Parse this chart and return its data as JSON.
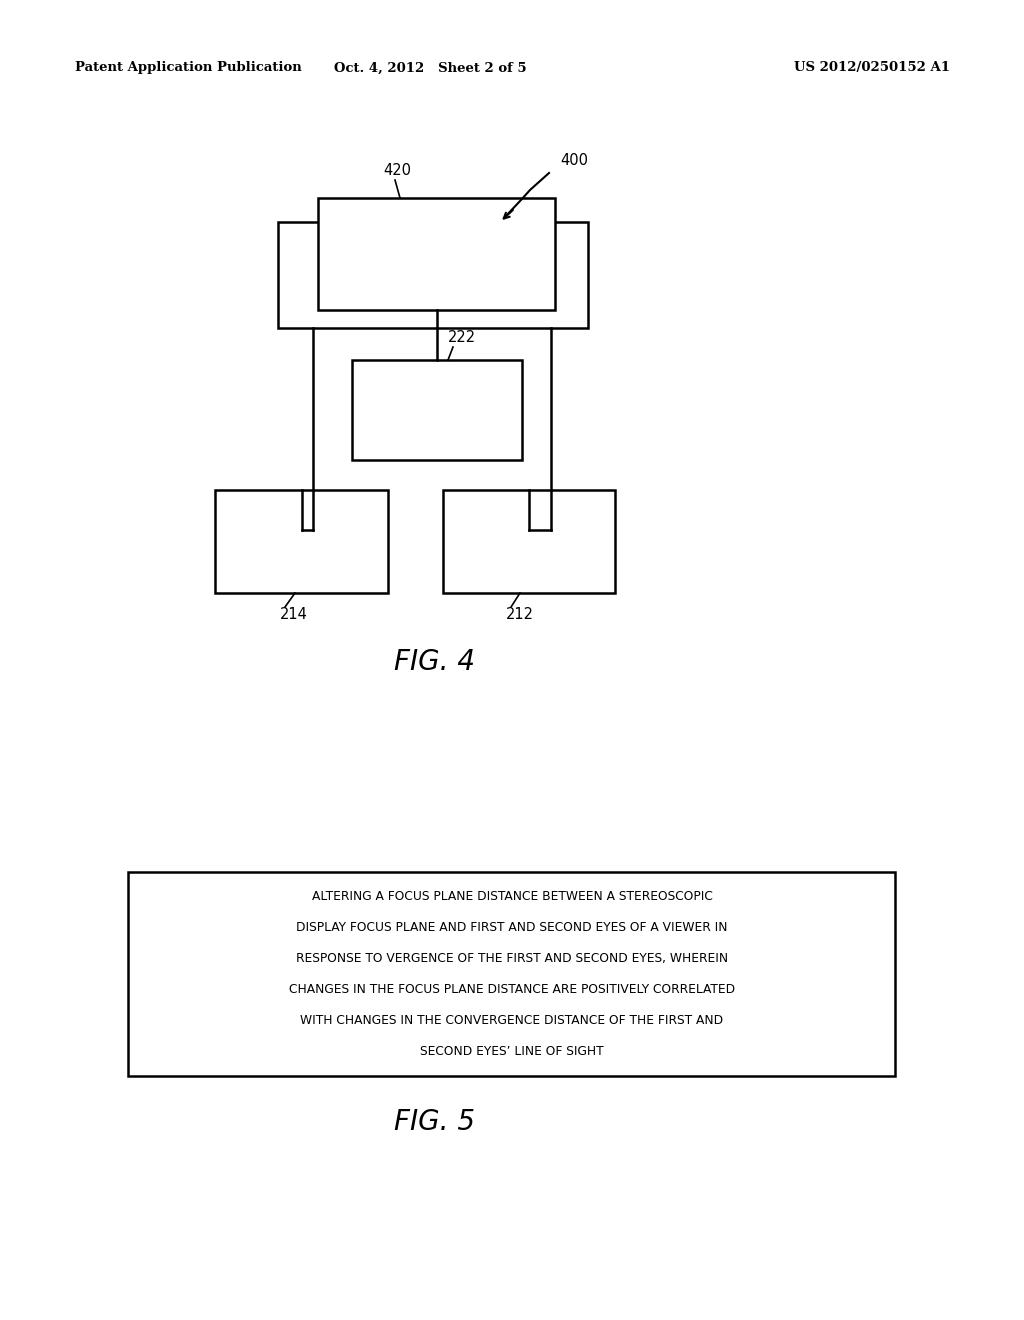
{
  "bg_color": "#ffffff",
  "header_left": "Patent Application Publication",
  "header_center": "Oct. 4, 2012   Sheet 2 of 5",
  "header_right": "US 2012/0250152 A1",
  "fig4_label": "FIG. 4",
  "fig5_label": "FIG. 5",
  "fig5_text_lines": [
    "ALTERING A FOCUS PLANE DISTANCE BETWEEN A STEREOSCOPIC",
    "DISPLAY FOCUS PLANE AND FIRST AND SECOND EYES OF A VIEWER IN",
    "RESPONSE TO VERGENCE OF THE FIRST AND SECOND EYES, WHEREIN",
    "CHANGES IN THE FOCUS PLANE DISTANCE ARE POSITIVELY CORRELATED",
    "WITH CHANGES IN THE CONVERGENCE DISTANCE OF THE FIRST AND",
    "SECOND EYES’ LINE OF SIGHT"
  ]
}
